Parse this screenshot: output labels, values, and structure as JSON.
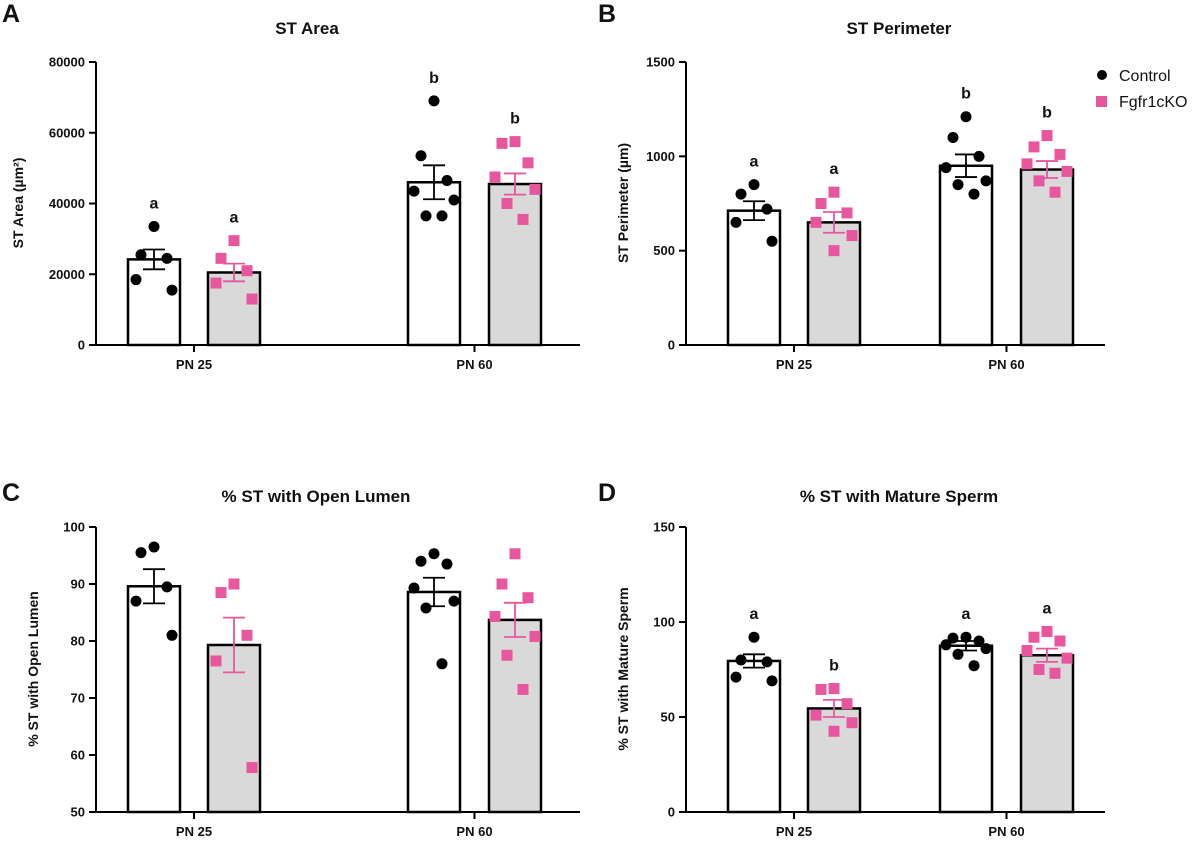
{
  "figure": {
    "legend": [
      {
        "label": "Control",
        "marker": "circle",
        "color": "#000000",
        "bar_fill": "#ffffff"
      },
      {
        "label": "Fgfr1cKO",
        "marker": "square",
        "color": "#e8579e",
        "bar_fill": "#d9d9d9"
      }
    ]
  },
  "chart_data": [
    {
      "panel": "A",
      "type": "bar",
      "title": "ST Area",
      "ylabel": "ST Area (µm²)",
      "xlabel": "",
      "categories": [
        "PN 25",
        "PN 60"
      ],
      "ylim": [
        0,
        80000
      ],
      "yticks": [
        0,
        20000,
        40000,
        60000,
        80000
      ],
      "tick_labels": [
        "0",
        "20000",
        "40000",
        "60000",
        "80000"
      ],
      "series": [
        {
          "name": "Control",
          "values": [
            24200,
            46000
          ],
          "sem": [
            2800,
            4800
          ],
          "points": [
            [
              33500,
              25500,
              24500,
              18500,
              15500
            ],
            [
              69000,
              53500,
              46500,
              43500,
              41000,
              36500,
              36500
            ]
          ],
          "letters": [
            "a",
            "b"
          ]
        },
        {
          "name": "Fgfr1cKO",
          "values": [
            20500,
            45500
          ],
          "sem": [
            2500,
            3000
          ],
          "points": [
            [
              29500,
              24500,
              21000,
              17500,
              13000
            ],
            [
              57500,
              57000,
              51500,
              47500,
              44000,
              40000,
              35500
            ]
          ],
          "letters": [
            "a",
            "b"
          ]
        }
      ]
    },
    {
      "panel": "B",
      "type": "bar",
      "title": "ST Perimeter",
      "ylabel": "ST Perimeter (µm)",
      "xlabel": "",
      "categories": [
        "PN 25",
        "PN 60"
      ],
      "ylim": [
        0,
        1500
      ],
      "yticks": [
        0,
        500,
        1000,
        1500
      ],
      "tick_labels": [
        "0",
        "500",
        "1000",
        "1500"
      ],
      "series": [
        {
          "name": "Control",
          "values": [
            712,
            950
          ],
          "sem": [
            50,
            60
          ],
          "points": [
            [
              850,
              800,
              720,
              650,
              550
            ],
            [
              1210,
              1100,
              1000,
              940,
              870,
              850,
              800
            ]
          ],
          "letters": [
            "a",
            "b"
          ]
        },
        {
          "name": "Fgfr1cKO",
          "values": [
            650,
            930
          ],
          "sem": [
            55,
            45
          ],
          "points": [
            [
              810,
              750,
              700,
              650,
              580,
              500
            ],
            [
              1110,
              1050,
              1010,
              960,
              920,
              870,
              810
            ]
          ],
          "letters": [
            "a",
            "b"
          ]
        }
      ]
    },
    {
      "panel": "C",
      "type": "bar",
      "title": "% ST with Open Lumen",
      "ylabel": "% ST with Open Lumen",
      "xlabel": "",
      "categories": [
        "PN 25",
        "PN 60"
      ],
      "ylim": [
        50,
        100
      ],
      "yticks": [
        50,
        60,
        70,
        80,
        90,
        100
      ],
      "tick_labels": [
        "50",
        "60",
        "70",
        "80",
        "90",
        "100"
      ],
      "series": [
        {
          "name": "Control",
          "values": [
            89.6,
            88.6
          ],
          "sem": [
            3,
            2.5
          ],
          "points": [
            [
              96.5,
              95.5,
              89.5,
              87,
              81
            ],
            [
              95.3,
              94,
              93.5,
              89.3,
              87,
              85.8,
              76
            ]
          ],
          "letters": [
            "",
            ""
          ]
        },
        {
          "name": "Fgfr1cKO",
          "values": [
            79.3,
            83.7
          ],
          "sem": [
            4.8,
            3
          ],
          "points": [
            [
              90,
              88.5,
              81,
              76.5,
              57.8
            ],
            [
              95.3,
              90,
              87.6,
              84.3,
              80.8,
              77.5,
              71.5
            ]
          ],
          "letters": [
            "",
            ""
          ]
        }
      ]
    },
    {
      "panel": "D",
      "type": "bar",
      "title": "% ST with Mature Sperm",
      "ylabel": "% ST with Mature Sperm",
      "xlabel": "",
      "categories": [
        "PN 25",
        "PN 60"
      ],
      "ylim": [
        0,
        150
      ],
      "yticks": [
        0,
        50,
        100,
        150
      ],
      "tick_labels": [
        "0",
        "50",
        "100",
        "150"
      ],
      "series": [
        {
          "name": "Control",
          "values": [
            79.5,
            87.5
          ],
          "sem": [
            3.5,
            2.5
          ],
          "points": [
            [
              92,
              80,
              79,
              71,
              69
            ],
            [
              92,
              91.5,
              90,
              88,
              86,
              83,
              77
            ]
          ],
          "letters": [
            "a",
            "a"
          ]
        },
        {
          "name": "Fgfr1cKO",
          "values": [
            54.5,
            82.5
          ],
          "sem": [
            4.5,
            3.5
          ],
          "points": [
            [
              65,
              64.5,
              57,
              51,
              47,
              42.5
            ],
            [
              95,
              92,
              90,
              85,
              81,
              75,
              73
            ]
          ],
          "letters": [
            "b",
            "a"
          ]
        }
      ]
    }
  ]
}
